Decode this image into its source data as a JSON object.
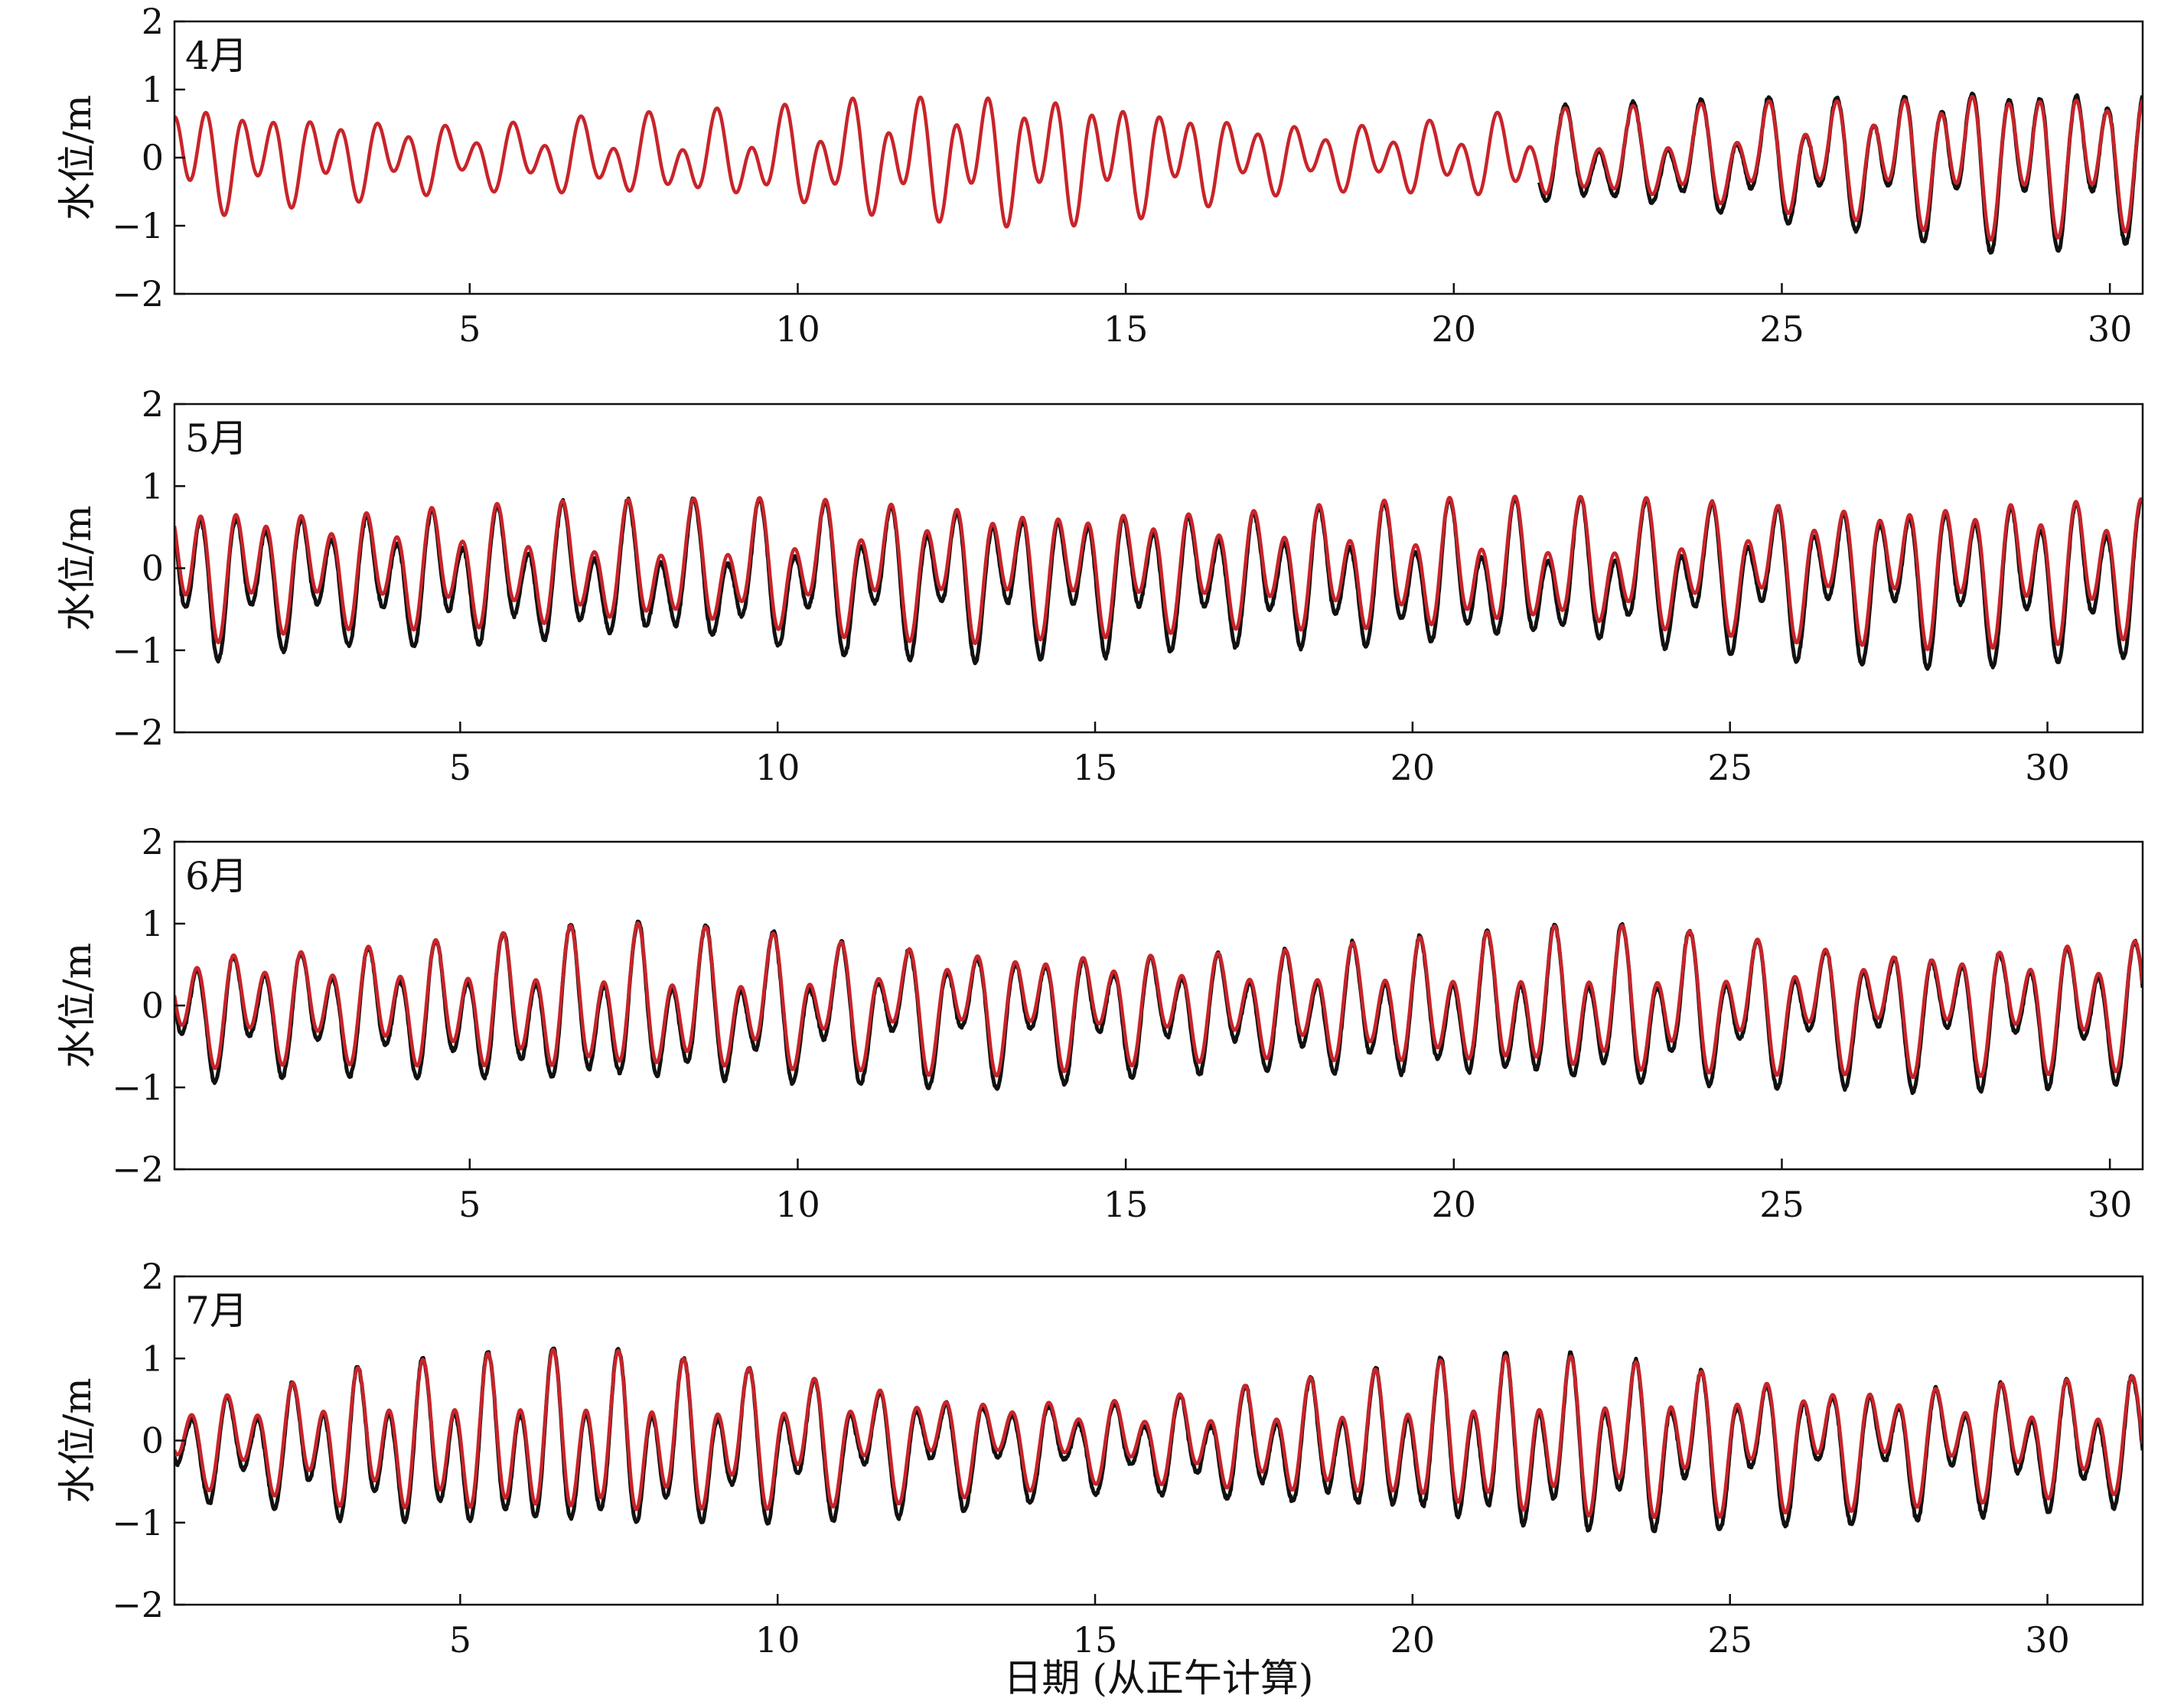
{
  "figure": {
    "xlabel": "日期 (从正午计算)",
    "colors": {
      "observed": "#111111",
      "model": "#c8242a",
      "axis": "#111111",
      "background": "#ffffff"
    }
  },
  "chart_data": [
    {
      "type": "line",
      "panel_label": "4月",
      "ylabel": "水位/m",
      "xlim": [
        0.5,
        30.5
      ],
      "ylim": [
        -2,
        2
      ],
      "xticks": [
        5,
        10,
        15,
        20,
        25,
        30
      ],
      "yticks": [
        -2,
        -1,
        0,
        1,
        2
      ],
      "observed_available_from_day": 21.3,
      "series": [
        {
          "role": "observed",
          "color": "#111111",
          "amp_factor": 1.12,
          "offset": -0.05,
          "daily_envelope": [
            1.0,
            0.8,
            0.7,
            0.65,
            0.6,
            0.55,
            0.65,
            0.75,
            0.8,
            0.85,
            0.9,
            1.0,
            1.0,
            1.0,
            0.95,
            0.85,
            0.7,
            0.55,
            0.5,
            0.55,
            0.65,
            0.8,
            0.85,
            0.9,
            0.95,
            1.0,
            1.0,
            1.05,
            1.15,
            1.1,
            1.0
          ]
        },
        {
          "role": "model",
          "color": "#c8242a",
          "amp_factor": 1.0,
          "offset": 0.0,
          "daily_envelope": [
            1.0,
            0.8,
            0.7,
            0.65,
            0.6,
            0.55,
            0.65,
            0.75,
            0.8,
            0.85,
            0.9,
            1.0,
            1.0,
            1.0,
            0.95,
            0.85,
            0.7,
            0.55,
            0.5,
            0.55,
            0.65,
            0.8,
            0.85,
            0.9,
            0.95,
            1.0,
            1.0,
            1.05,
            1.15,
            1.1,
            1.0
          ]
        }
      ]
    },
    {
      "type": "line",
      "panel_label": "5月",
      "ylabel": "水位/m",
      "xlim": [
        0.5,
        31.5
      ],
      "ylim": [
        -2,
        2
      ],
      "xticks": [
        5,
        10,
        15,
        20,
        25,
        30
      ],
      "yticks": [
        -2,
        -1,
        0,
        1,
        2
      ],
      "observed_available_from_day": 0.5,
      "series": [
        {
          "role": "observed",
          "color": "#111111",
          "amp_factor": 1.12,
          "offset": -0.12,
          "daily_envelope": [
            1.0,
            0.85,
            0.75,
            0.7,
            0.75,
            0.8,
            0.85,
            0.9,
            0.95,
            1.0,
            1.05,
            1.05,
            1.0,
            0.95,
            0.85,
            0.8,
            0.75,
            0.7,
            0.75,
            0.8,
            0.85,
            0.9,
            0.95,
            1.0,
            1.05,
            1.05,
            1.05,
            1.0,
            1.0,
            0.95,
            0.9,
            0.85
          ]
        },
        {
          "role": "model",
          "color": "#c8242a",
          "amp_factor": 1.0,
          "offset": 0.0,
          "daily_envelope": [
            1.0,
            0.85,
            0.75,
            0.7,
            0.75,
            0.8,
            0.85,
            0.9,
            0.95,
            1.0,
            1.05,
            1.05,
            1.0,
            0.95,
            0.85,
            0.8,
            0.75,
            0.7,
            0.75,
            0.8,
            0.85,
            0.9,
            0.95,
            1.0,
            1.05,
            1.05,
            1.05,
            1.0,
            1.0,
            0.95,
            0.9,
            0.85
          ]
        }
      ]
    },
    {
      "type": "line",
      "panel_label": "6月",
      "ylabel": "水位/m",
      "xlim": [
        0.5,
        30.5
      ],
      "ylim": [
        -2,
        2
      ],
      "xticks": [
        5,
        10,
        15,
        20,
        25,
        30
      ],
      "yticks": [
        -2,
        -1,
        0,
        1,
        2
      ],
      "observed_available_from_day": 0.5,
      "series": [
        {
          "role": "observed",
          "color": "#111111",
          "amp_factor": 1.1,
          "offset": -0.08,
          "daily_envelope": [
            0.8,
            0.75,
            0.7,
            0.7,
            0.75,
            0.8,
            0.9,
            1.0,
            1.05,
            1.05,
            1.05,
            1.0,
            1.0,
            0.95,
            0.85,
            0.75,
            0.7,
            0.65,
            0.7,
            0.75,
            0.8,
            0.9,
            1.0,
            1.05,
            1.05,
            1.05,
            1.0,
            1.0,
            0.95,
            0.9,
            0.85
          ]
        },
        {
          "role": "model",
          "color": "#c8242a",
          "amp_factor": 1.0,
          "offset": 0.0,
          "daily_envelope": [
            0.8,
            0.75,
            0.7,
            0.7,
            0.75,
            0.8,
            0.9,
            1.0,
            1.05,
            1.05,
            1.05,
            1.0,
            1.0,
            0.95,
            0.85,
            0.75,
            0.7,
            0.65,
            0.7,
            0.75,
            0.8,
            0.9,
            1.0,
            1.05,
            1.05,
            1.05,
            1.0,
            1.0,
            0.95,
            0.9,
            0.85
          ]
        }
      ]
    },
    {
      "type": "line",
      "panel_label": "7月",
      "ylabel": "水位/m",
      "xlim": [
        0.5,
        31.5
      ],
      "ylim": [
        -2,
        2
      ],
      "xticks": [
        5,
        10,
        15,
        20,
        25,
        30
      ],
      "yticks": [
        -2,
        -1,
        0,
        1,
        2
      ],
      "xlabel": "日期 (从正午计算)",
      "observed_available_from_day": 0.5,
      "series": [
        {
          "role": "observed",
          "color": "#111111",
          "amp_factor": 1.1,
          "offset": -0.08,
          "daily_envelope": [
            0.7,
            0.65,
            0.7,
            0.85,
            0.9,
            0.95,
            1.0,
            1.05,
            1.05,
            1.0,
            1.0,
            0.95,
            0.9,
            0.8,
            0.7,
            0.6,
            0.6,
            0.65,
            0.7,
            0.75,
            0.85,
            0.95,
            1.0,
            1.05,
            1.05,
            1.05,
            1.0,
            1.0,
            0.95,
            0.9,
            0.85,
            0.8
          ]
        },
        {
          "role": "model",
          "color": "#c8242a",
          "amp_factor": 1.0,
          "offset": 0.0,
          "daily_envelope": [
            0.7,
            0.65,
            0.7,
            0.85,
            0.9,
            0.95,
            1.0,
            1.05,
            1.05,
            1.0,
            1.0,
            0.95,
            0.9,
            0.8,
            0.7,
            0.6,
            0.6,
            0.65,
            0.7,
            0.75,
            0.85,
            0.95,
            1.0,
            1.05,
            1.05,
            1.05,
            1.0,
            1.0,
            0.95,
            0.9,
            0.85,
            0.8
          ]
        }
      ]
    }
  ]
}
